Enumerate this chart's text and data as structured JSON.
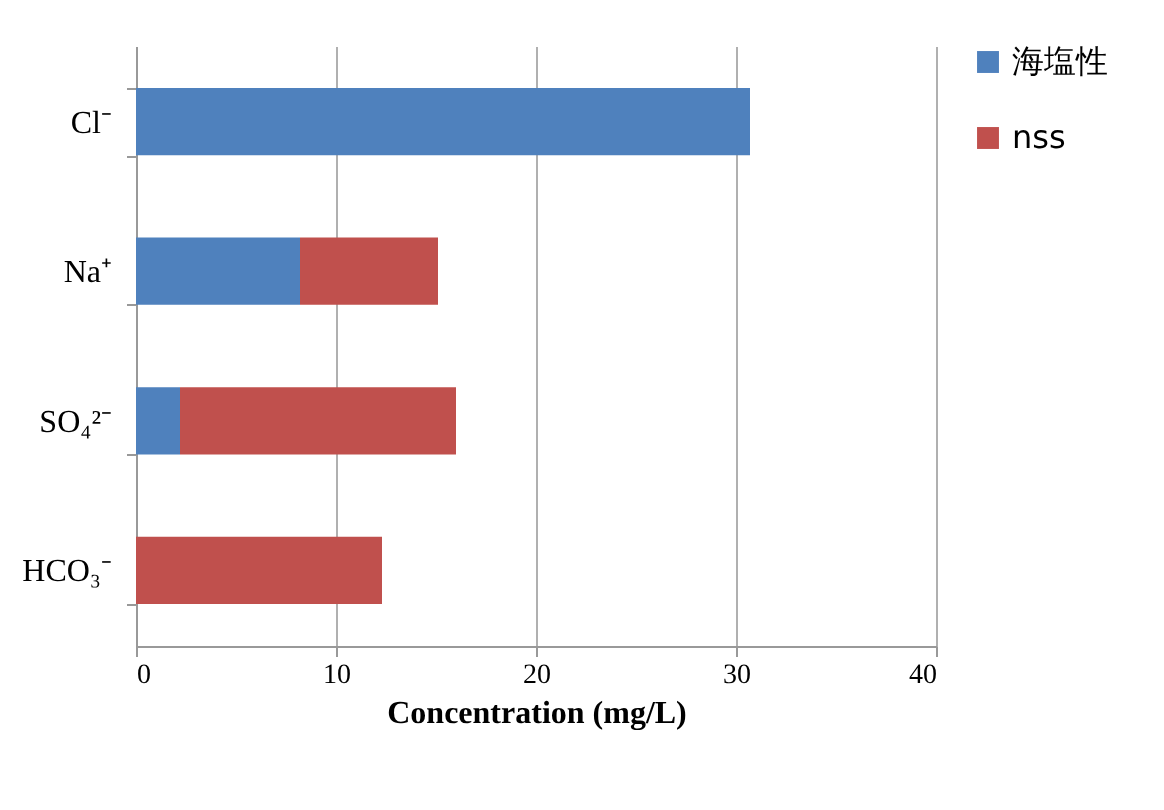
{
  "chart_data": {
    "type": "bar",
    "orientation": "horizontal",
    "stacked": true,
    "categories": [
      "Cl⁻",
      "Na⁺",
      "SO₄²⁻",
      "HCO₃⁻"
    ],
    "series": [
      {
        "name": "海塩性",
        "color": "#4f81bd",
        "values": [
          30.7,
          8.2,
          2.2,
          null
        ]
      },
      {
        "name": "nss",
        "color": "#c0504d",
        "values": [
          null,
          6.9,
          13.8,
          12.3
        ]
      }
    ],
    "xlabel": "Concentration (mg/L)",
    "xlim": [
      0,
      40
    ],
    "xticks": [
      0,
      10,
      20,
      30,
      40
    ],
    "grid": "x",
    "legend": "right"
  }
}
